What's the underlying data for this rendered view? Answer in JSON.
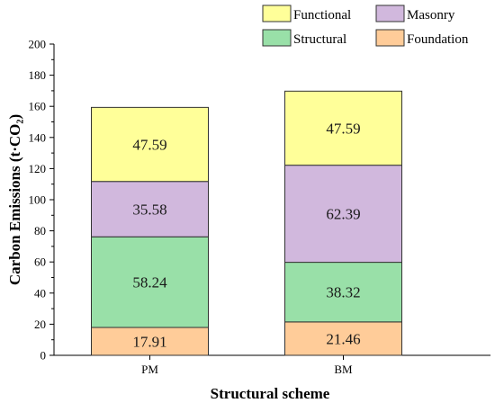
{
  "chart_data": {
    "type": "bar",
    "stacked": true,
    "categories": [
      "PM",
      "BM"
    ],
    "series": [
      {
        "name": "Foundation",
        "color": "#FFCC99",
        "values": [
          17.91,
          21.46
        ]
      },
      {
        "name": "Structural",
        "color": "#99E0A8",
        "values": [
          58.24,
          38.32
        ]
      },
      {
        "name": "Masonry",
        "color": "#D1B8DD",
        "values": [
          35.58,
          62.39
        ]
      },
      {
        "name": "Functional",
        "color": "#FFFF99",
        "values": [
          47.59,
          47.59
        ]
      }
    ],
    "value_labels": [
      [
        "17.91",
        "58.24",
        "35.58",
        "47.59"
      ],
      [
        "21.46",
        "38.32",
        "62.39",
        "47.59"
      ]
    ],
    "ylabel": "Carbon Emissions (t·CO₂)",
    "xlabel": "Structural scheme",
    "ylim": [
      0,
      200
    ],
    "yticks": [
      0,
      20,
      40,
      60,
      80,
      100,
      120,
      140,
      160,
      180,
      200
    ],
    "grid": false,
    "legend": {
      "position": "top-right",
      "order": [
        "Functional",
        "Masonry",
        "Structural",
        "Foundation"
      ]
    }
  }
}
